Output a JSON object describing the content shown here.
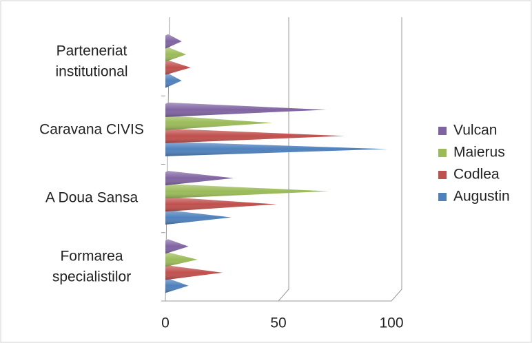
{
  "chart_data": {
    "type": "bar",
    "orientation": "horizontal",
    "categories": [
      "Formarea specialistilor",
      "A Doua Sansa",
      "Caravana CIVIS",
      "Parteneriat institutional"
    ],
    "series": [
      {
        "name": "Augustin",
        "color": "#4f81bd",
        "values": [
          9,
          28,
          97,
          6
        ]
      },
      {
        "name": "Codlea",
        "color": "#c0504d",
        "values": [
          24,
          48,
          78,
          10
        ]
      },
      {
        "name": "Maierus",
        "color": "#9bbb59",
        "values": [
          13,
          71,
          46,
          8
        ]
      },
      {
        "name": "Vulcan",
        "color": "#8064a2",
        "values": [
          9,
          29,
          70,
          6
        ]
      }
    ],
    "xlim": [
      0,
      100
    ],
    "xticks": [
      0,
      50,
      100
    ],
    "grid": true,
    "legend": "right"
  }
}
